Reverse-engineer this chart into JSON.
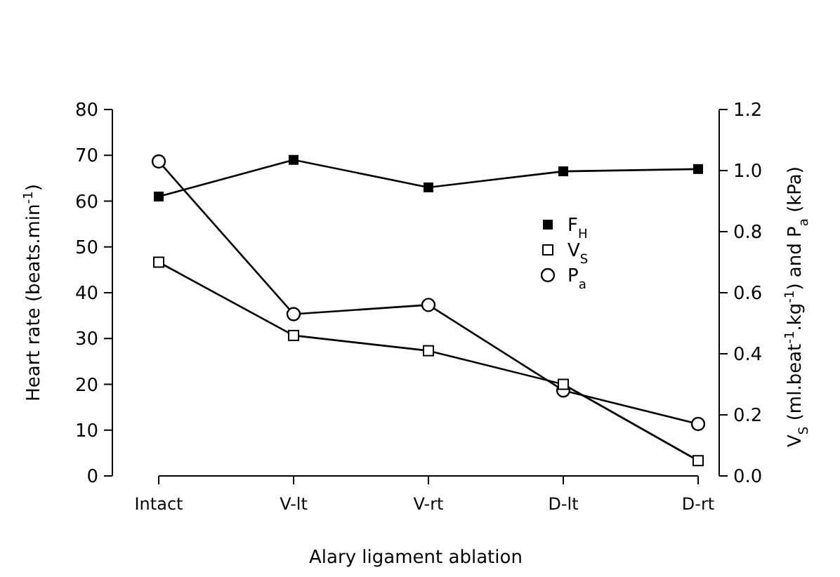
{
  "chart_data": {
    "type": "line",
    "xlabel": "Alary ligament ablation",
    "ylabel": "Heart rate (beats.min$^{-1}$)",
    "y2label": "V$_{S}$ (ml.beat$^{-1}$.kg$^{-1}$) and P$_{a}$ (kPa)",
    "categories": [
      "Intact",
      "V-lt",
      "V-rt",
      "D-lt",
      "D-rt"
    ],
    "ylim": [
      0,
      80
    ],
    "yticks": [
      0,
      10,
      20,
      30,
      40,
      50,
      60,
      70,
      80
    ],
    "y2lim": [
      0,
      1.2
    ],
    "y2ticks": [
      {
        "value": 0,
        "label": "0.0"
      },
      {
        "value": 0.2,
        "label": "0.2"
      },
      {
        "value": 0.4,
        "label": "0.4"
      },
      {
        "value": 0.6,
        "label": "0.6"
      },
      {
        "value": 0.8,
        "label": "0.8"
      },
      {
        "value": 1.0,
        "label": "1.0"
      },
      {
        "value": 1.2,
        "label": "1.2"
      }
    ],
    "legend": "right",
    "grid": false,
    "line_style": "solid",
    "series": [
      {
        "name": "F$_{H}$",
        "color": "#000000",
        "marker": "square",
        "values": [
          61,
          69,
          63,
          66.5,
          67
        ]
      },
      {
        "name": "V$_{S}$",
        "color": "#000000",
        "marker": "square-open",
        "axis": "y2",
        "values": [
          0.7,
          0.46,
          0.41,
          0.3,
          0.05
        ]
      },
      {
        "name": "P$_{a}$",
        "color": "#000000",
        "marker": "circle-open",
        "axis": "y2",
        "values": [
          1.03,
          0.53,
          0.56,
          0.28,
          0.17
        ]
      }
    ]
  }
}
